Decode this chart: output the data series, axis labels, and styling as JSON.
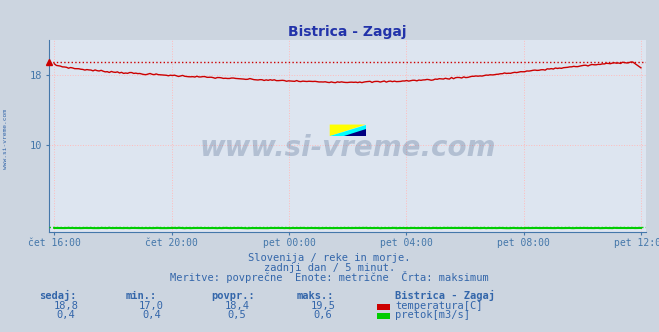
{
  "title": "Bistrica - Zagaj",
  "bg_color": "#ccd5e0",
  "plot_bg_color": "#dde5f0",
  "grid_color": "#ffbbbb",
  "xlabel_color": "#4477aa",
  "ylabel_color": "#4477aa",
  "title_color": "#2233aa",
  "text_color": "#3366aa",
  "watermark_color": "#1a3a6a",
  "axis_color": "#4477aa",
  "xticklabels": [
    "čet 16:00",
    "čet 20:00",
    "pet 00:00",
    "pet 04:00",
    "pet 08:00",
    "pet 12:00"
  ],
  "xtick_positions": [
    0,
    48,
    96,
    144,
    192,
    240
  ],
  "ylim": [
    0,
    22
  ],
  "yticks": [
    10,
    18
  ],
  "n_points": 289,
  "temp_min": 17.0,
  "temp_max": 19.5,
  "temp_avg": 18.4,
  "temp_current": 18.8,
  "flow_min": 0.4,
  "flow_max": 0.6,
  "flow_avg": 0.5,
  "flow_current": 0.4,
  "subtitle1": "Slovenija / reke in morje.",
  "subtitle2": "zadnji dan / 5 minut.",
  "subtitle3": "Meritve: povprečne  Enote: metrične  Črta: maksimum",
  "legend_station": "Bistrica - Zagaj",
  "legend_temp": "temperatura[C]",
  "legend_flow": "pretok[m3/s]",
  "label_sedaj": "sedaj:",
  "label_min": "min.:",
  "label_povpr": "povpr.:",
  "label_maks": "maks.:",
  "temp_line_color": "#cc0000",
  "flow_line_color": "#00cc00",
  "arrow_color": "#cc0000",
  "left_label_color": "#3366aa",
  "sidebar_text": "www.si-vreme.com"
}
